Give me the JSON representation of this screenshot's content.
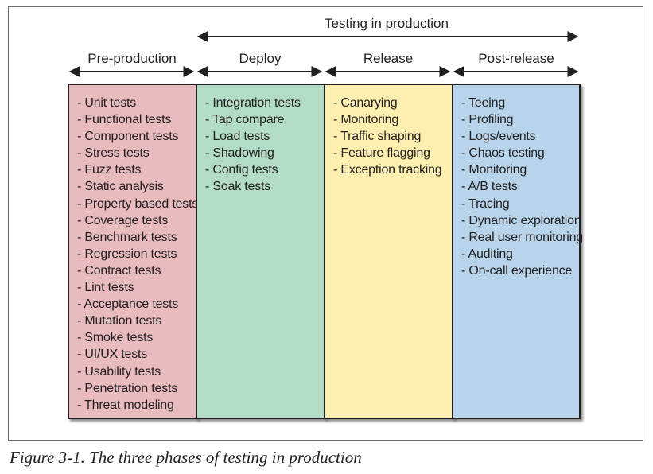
{
  "diagram": {
    "top_label": "Testing in production",
    "phases": [
      {
        "name": "Pre-production",
        "color": "#e8bcbe",
        "items": [
          "- Unit tests",
          "- Functional tests",
          "- Component tests",
          "- Stress tests",
          "- Fuzz tests",
          "- Static analysis",
          "- Property based tests",
          "- Coverage tests",
          "- Benchmark tests",
          "- Regression tests",
          "- Contract tests",
          "- Lint tests",
          "- Acceptance tests",
          "- Mutation tests",
          "- Smoke tests",
          "- UI/UX tests",
          "- Usability tests",
          "- Penetration tests",
          "- Threat modeling"
        ]
      },
      {
        "name": "Deploy",
        "color": "#b3dcc6",
        "items": [
          "- Integration tests",
          "- Tap compare",
          "- Load tests",
          "- Shadowing",
          "- Config tests",
          "- Soak tests"
        ]
      },
      {
        "name": "Release",
        "color": "#fdefb0",
        "items": [
          "- Canarying",
          "- Monitoring",
          "- Traffic shaping",
          "- Feature flagging",
          "- Exception tracking"
        ]
      },
      {
        "name": "Post-release",
        "color": "#b7d4ea",
        "items": [
          "- Teeing",
          "- Profiling",
          "- Logs/events",
          "- Chaos testing",
          "- Monitoring",
          "- A/B tests",
          "- Tracing",
          "- Dynamic exploration",
          "- Real user monitoring",
          "- Auditing",
          "- On-call experience"
        ]
      }
    ]
  },
  "caption": "Figure 3-1. The three phases of testing in production"
}
